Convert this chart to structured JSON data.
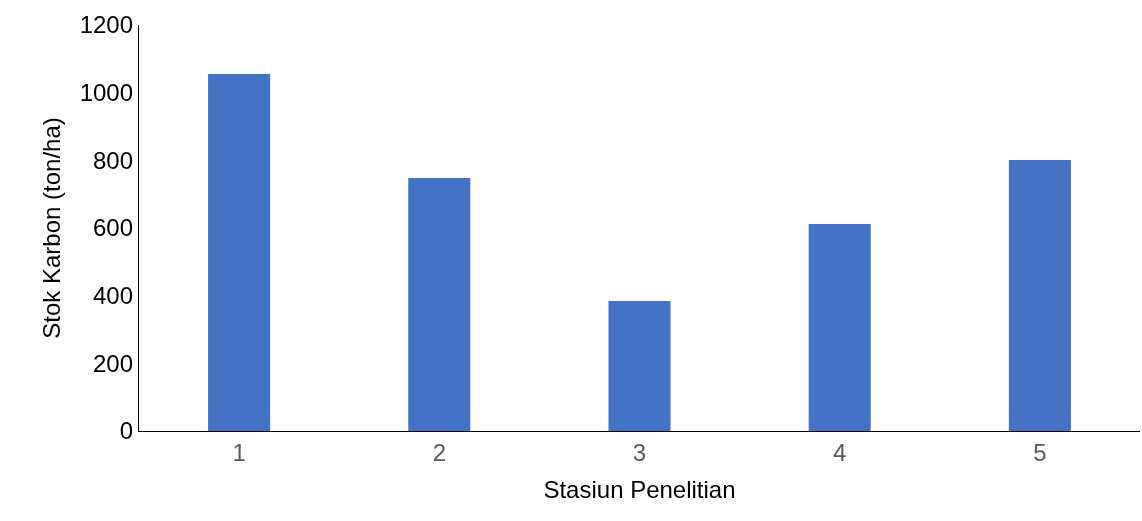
{
  "chart_data": {
    "type": "bar",
    "xlabel": "Stasiun Penelitian",
    "ylabel": "Stok Karbon (ton/ha)",
    "categories": [
      "1",
      "2",
      "3",
      "4",
      "5"
    ],
    "values": [
      1055,
      748,
      384,
      612,
      801
    ],
    "color": "#4472c4",
    "ylim": [
      0,
      1200
    ],
    "yticks": [
      0,
      200,
      400,
      600,
      800,
      1000,
      1200
    ],
    "grid": false,
    "legend": false
  }
}
